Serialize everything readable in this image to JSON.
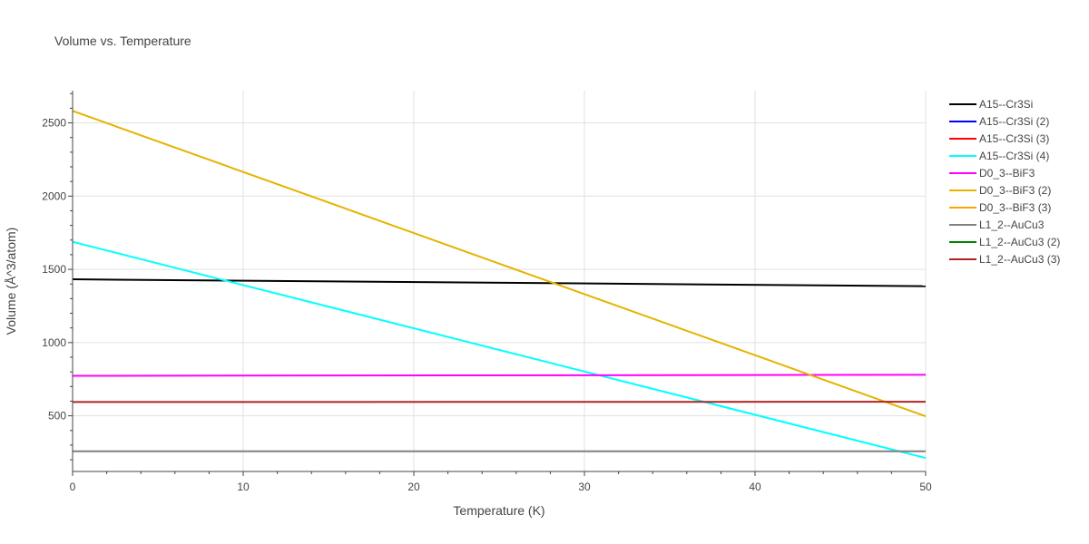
{
  "chart_data": {
    "type": "line",
    "title": "Volume vs. Temperature",
    "xlabel": "Temperature (K)",
    "ylabel": "Volume (Å^3/atom)",
    "xlim": [
      0,
      50
    ],
    "ylim": [
      120,
      2720
    ],
    "x_ticks": [
      0,
      10,
      20,
      30,
      40,
      50
    ],
    "y_ticks": [
      500,
      1000,
      1500,
      2000,
      2500
    ],
    "grid": true,
    "legend_position": "right",
    "series": [
      {
        "name": "A15--Cr3Si",
        "color": "#000000",
        "x": [
          0,
          50
        ],
        "y": [
          1432,
          1385
        ]
      },
      {
        "name": "A15--Cr3Si (2)",
        "color": "#0000ff",
        "x": [],
        "y": []
      },
      {
        "name": "A15--Cr3Si (3)",
        "color": "#ff0000",
        "x": [],
        "y": []
      },
      {
        "name": "A15--Cr3Si (4)",
        "color": "#00ffff",
        "x": [
          0,
          50
        ],
        "y": [
          1688,
          212
        ]
      },
      {
        "name": "D0_3--BiF3",
        "color": "#ff00ff",
        "x": [
          0,
          50
        ],
        "y": [
          773,
          780
        ]
      },
      {
        "name": "D0_3--BiF3 (2)",
        "color": "#e6b300",
        "x": [
          0,
          50
        ],
        "y": [
          2582,
          497
        ]
      },
      {
        "name": "D0_3--BiF3 (3)",
        "color": "#ffa500",
        "x": [],
        "y": []
      },
      {
        "name": "L1_2--AuCu3",
        "color": "#808080",
        "x": [
          0,
          50
        ],
        "y": [
          258,
          258
        ]
      },
      {
        "name": "L1_2--AuCu3 (2)",
        "color": "#008000",
        "x": [],
        "y": []
      },
      {
        "name": "L1_2--AuCu3 (3)",
        "color": "#b22222",
        "x": [
          0,
          50
        ],
        "y": [
          594,
          596
        ]
      }
    ]
  }
}
